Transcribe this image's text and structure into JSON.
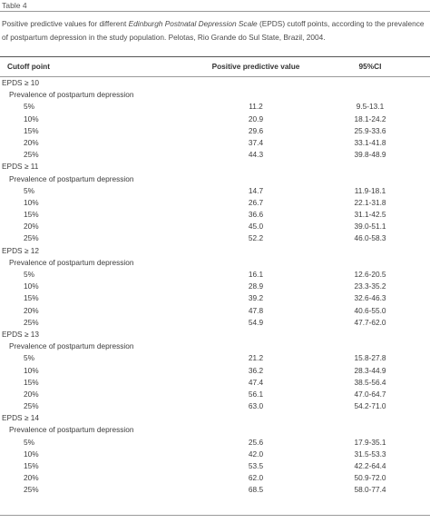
{
  "table_label": "Table 4",
  "caption": {
    "part1": "Positive predictive values for different ",
    "italic": "Edinburgh Postnatal Depression Scale",
    "part2": " (EPDS) cutoff points, according to the prevalence of postpartum depression in the study population. Pelotas, Rio Grande do Sul State, Brazil, 2004."
  },
  "columns": {
    "cutoff": "Cutoff point",
    "ppv": "Positive predictive value",
    "ci": "95%CI"
  },
  "groups": [
    {
      "cutoff": "EPDS ≥ 10",
      "subheader": "Prevalence of postpartum depression",
      "rows": [
        {
          "prev": "5%",
          "ppv": "11.2",
          "ci": "9.5-13.1"
        },
        {
          "prev": "10%",
          "ppv": "20.9",
          "ci": "18.1-24.2"
        },
        {
          "prev": "15%",
          "ppv": "29.6",
          "ci": "25.9-33.6"
        },
        {
          "prev": "20%",
          "ppv": "37.4",
          "ci": "33.1-41.8"
        },
        {
          "prev": "25%",
          "ppv": "44.3",
          "ci": "39.8-48.9"
        }
      ]
    },
    {
      "cutoff": "EPDS ≥ 11",
      "subheader": "Prevalence of postpartum depression",
      "rows": [
        {
          "prev": "5%",
          "ppv": "14.7",
          "ci": "11.9-18.1"
        },
        {
          "prev": "10%",
          "ppv": "26.7",
          "ci": "22.1-31.8"
        },
        {
          "prev": "15%",
          "ppv": "36.6",
          "ci": "31.1-42.5"
        },
        {
          "prev": "20%",
          "ppv": "45.0",
          "ci": "39.0-51.1"
        },
        {
          "prev": "25%",
          "ppv": "52.2",
          "ci": "46.0-58.3"
        }
      ]
    },
    {
      "cutoff": "EPDS ≥ 12",
      "subheader": "Prevalence of postpartum depression",
      "rows": [
        {
          "prev": "5%",
          "ppv": "16.1",
          "ci": "12.6-20.5"
        },
        {
          "prev": "10%",
          "ppv": "28.9",
          "ci": "23.3-35.2"
        },
        {
          "prev": "15%",
          "ppv": "39.2",
          "ci": "32.6-46.3"
        },
        {
          "prev": "20%",
          "ppv": "47.8",
          "ci": "40.6-55.0"
        },
        {
          "prev": "25%",
          "ppv": "54.9",
          "ci": "47.7-62.0"
        }
      ]
    },
    {
      "cutoff": "EPDS ≥ 13",
      "subheader": "Prevalence of postpartum depression",
      "rows": [
        {
          "prev": "5%",
          "ppv": "21.2",
          "ci": "15.8-27.8"
        },
        {
          "prev": "10%",
          "ppv": "36.2",
          "ci": "28.3-44.9"
        },
        {
          "prev": "15%",
          "ppv": "47.4",
          "ci": "38.5-56.4"
        },
        {
          "prev": "20%",
          "ppv": "56.1",
          "ci": "47.0-64.7"
        },
        {
          "prev": "25%",
          "ppv": "63.0",
          "ci": "54.2-71.0"
        }
      ]
    },
    {
      "cutoff": "EPDS ≥ 14",
      "subheader": "Prevalence of postpartum depression",
      "rows": [
        {
          "prev": "5%",
          "ppv": "25.6",
          "ci": "17.9-35.1"
        },
        {
          "prev": "10%",
          "ppv": "42.0",
          "ci": "31.5-53.3"
        },
        {
          "prev": "15%",
          "ppv": "53.5",
          "ci": "42.2-64.4"
        },
        {
          "prev": "20%",
          "ppv": "62.0",
          "ci": "50.9-72.0"
        },
        {
          "prev": "25%",
          "ppv": "68.5",
          "ci": "58.0-77.4"
        }
      ]
    }
  ]
}
